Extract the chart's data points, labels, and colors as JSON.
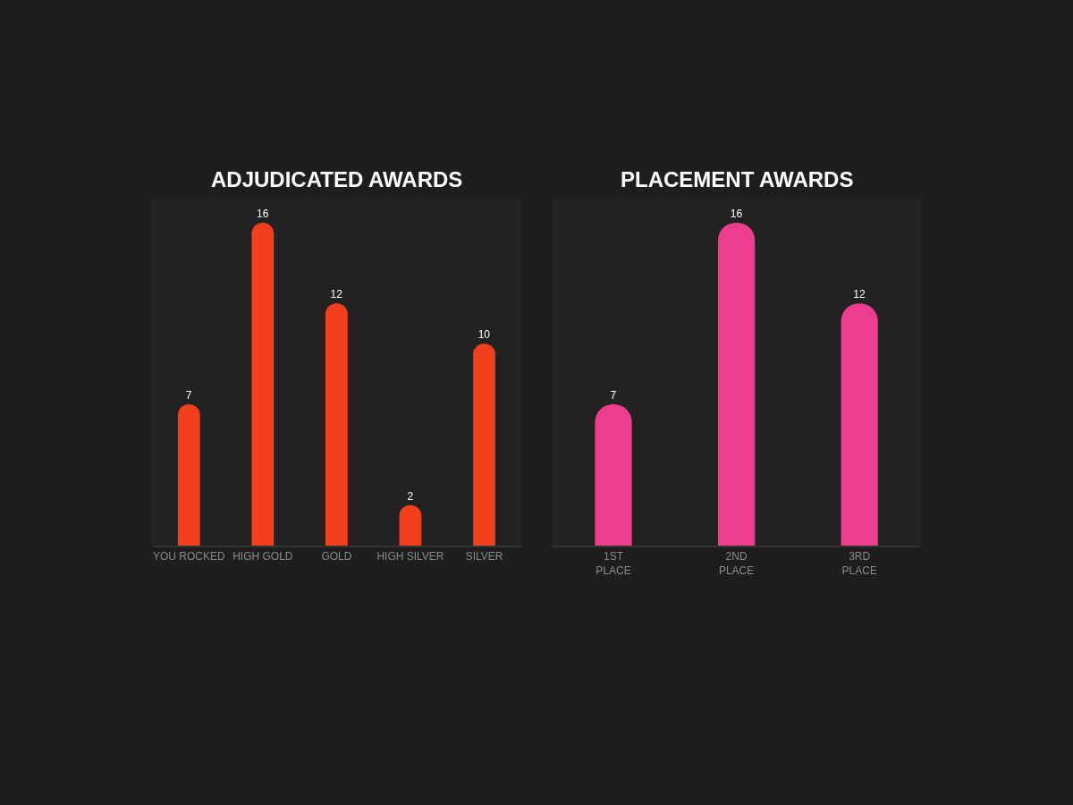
{
  "chart_data": [
    {
      "type": "bar",
      "title": "ADJUDICATED AWARDS",
      "categories": [
        "YOU ROCKED",
        "HIGH GOLD",
        "GOLD",
        "HIGH SILVER",
        "SILVER"
      ],
      "values": [
        7,
        16,
        12,
        2,
        10
      ],
      "color": "#f2401c",
      "data_labels": true
    },
    {
      "type": "bar",
      "title": "PLACEMENT AWARDS",
      "categories": [
        "1ST\nPLACE",
        "2ND\nPLACE",
        "3RD\nPLACE"
      ],
      "values": [
        7,
        16,
        12
      ],
      "color": "#ec3d8e",
      "data_labels": true
    }
  ]
}
